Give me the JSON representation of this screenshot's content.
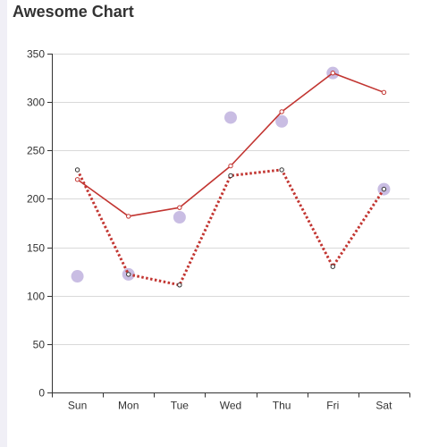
{
  "title": "Awesome Chart",
  "colors": {
    "line": "#c23531",
    "scatter": "#c9bde3",
    "grid": "#d9d9d9",
    "axis": "#333333",
    "rail": "#f0eff6",
    "marker_stroke_dark": "#333333"
  },
  "chart_data": {
    "type": "line",
    "title": "Awesome Chart",
    "categories": [
      "Sun",
      "Mon",
      "Tue",
      "Wed",
      "Thu",
      "Fri",
      "Sat"
    ],
    "ylim": [
      0,
      350
    ],
    "yticks": [
      0,
      50,
      100,
      150,
      200,
      250,
      300,
      350
    ],
    "grid": true,
    "series": [
      {
        "type": "line",
        "style": "solid",
        "values": [
          220,
          182,
          191,
          234,
          290,
          330,
          310
        ]
      },
      {
        "type": "line",
        "style": "dotted",
        "values": [
          230,
          122,
          111,
          224,
          230,
          130,
          210
        ]
      },
      {
        "type": "scatter",
        "values": [
          120,
          122,
          181,
          284,
          280,
          330,
          210
        ]
      }
    ]
  }
}
